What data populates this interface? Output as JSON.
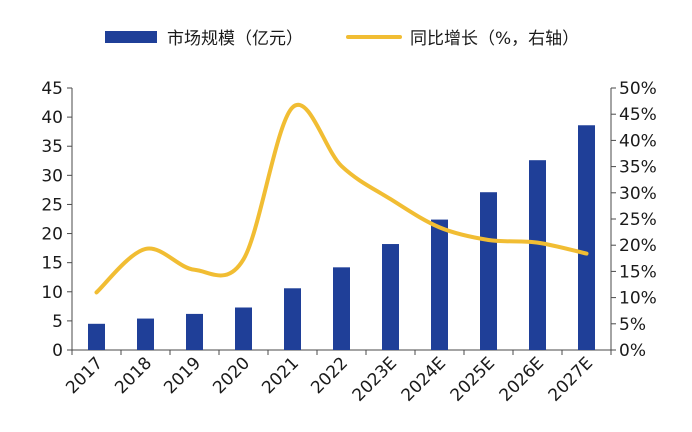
{
  "chart_data": {
    "type": "bar+line",
    "categories": [
      "2017",
      "2018",
      "2019",
      "2020",
      "2021",
      "2022",
      "2023E",
      "2024E",
      "2025E",
      "2026E",
      "2027E"
    ],
    "series": [
      {
        "name": "市场规模（亿元）",
        "type": "bar",
        "axis": "left",
        "color": "#1f3f98",
        "values": [
          4.5,
          5.4,
          6.2,
          7.3,
          10.6,
          14.2,
          18.2,
          22.4,
          27.1,
          32.6,
          38.6
        ]
      },
      {
        "name": "同比增长（%，右轴）",
        "type": "line",
        "axis": "right",
        "color": "#f1bd33",
        "values": [
          11.0,
          19.3,
          15.3,
          17.3,
          46.3,
          35.1,
          28.8,
          23.4,
          21.0,
          20.5,
          18.4
        ]
      }
    ],
    "y_left": {
      "min": 0,
      "max": 45,
      "ticks": [
        "0",
        "5",
        "10",
        "15",
        "20",
        "25",
        "30",
        "35",
        "40",
        "45"
      ]
    },
    "y_right": {
      "min": 0,
      "max": 50,
      "ticks": [
        "0%",
        "5%",
        "10%",
        "15%",
        "20%",
        "25%",
        "30%",
        "35%",
        "40%",
        "45%",
        "50%"
      ]
    },
    "grid": false,
    "legend_position": "top"
  }
}
